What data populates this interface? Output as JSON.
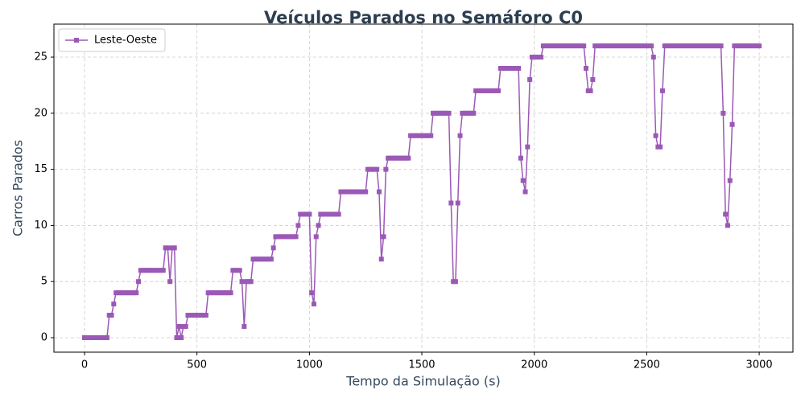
{
  "chart_data": {
    "type": "line",
    "title": "Veículos Parados no Semáforo C0",
    "x_label": "Tempo da Simulação (s)",
    "y_label": "Carros Parados",
    "xlim": [
      -136,
      3150
    ],
    "ylim": [
      -1.29,
      27.94
    ],
    "xticks": [
      0,
      500,
      1000,
      1500,
      2000,
      2500,
      3000
    ],
    "yticks": [
      0,
      5,
      10,
      15,
      20,
      25
    ],
    "grid": true,
    "legend": "upper left",
    "marker": "square",
    "x": [
      0,
      10,
      20,
      30,
      40,
      50,
      60,
      70,
      80,
      90,
      100,
      110,
      120,
      130,
      140,
      150,
      160,
      170,
      180,
      190,
      200,
      210,
      220,
      230,
      240,
      250,
      260,
      270,
      280,
      290,
      300,
      310,
      320,
      330,
      340,
      350,
      360,
      370,
      380,
      390,
      400,
      410,
      420,
      430,
      440,
      450,
      460,
      470,
      480,
      490,
      500,
      510,
      520,
      530,
      540,
      550,
      560,
      570,
      580,
      590,
      600,
      610,
      620,
      630,
      640,
      650,
      660,
      670,
      680,
      690,
      700,
      710,
      720,
      730,
      740,
      750,
      760,
      770,
      780,
      790,
      800,
      810,
      820,
      830,
      840,
      850,
      860,
      870,
      880,
      890,
      900,
      910,
      920,
      930,
      940,
      950,
      960,
      970,
      980,
      990,
      1000,
      1010,
      1020,
      1030,
      1040,
      1050,
      1060,
      1070,
      1080,
      1090,
      1100,
      1110,
      1120,
      1130,
      1140,
      1150,
      1160,
      1170,
      1180,
      1190,
      1200,
      1210,
      1220,
      1230,
      1240,
      1250,
      1260,
      1270,
      1280,
      1290,
      1300,
      1310,
      1320,
      1330,
      1340,
      1350,
      1360,
      1370,
      1380,
      1390,
      1400,
      1410,
      1420,
      1430,
      1440,
      1450,
      1460,
      1470,
      1480,
      1490,
      1500,
      1510,
      1520,
      1530,
      1540,
      1550,
      1560,
      1570,
      1580,
      1590,
      1600,
      1610,
      1620,
      1630,
      1640,
      1650,
      1660,
      1670,
      1680,
      1690,
      1700,
      1710,
      1720,
      1730,
      1740,
      1750,
      1760,
      1770,
      1780,
      1790,
      1800,
      1810,
      1820,
      1830,
      1840,
      1850,
      1860,
      1870,
      1880,
      1890,
      1900,
      1910,
      1920,
      1930,
      1940,
      1950,
      1960,
      1970,
      1980,
      1990,
      2000,
      2010,
      2020,
      2030,
      2040,
      2050,
      2060,
      2070,
      2080,
      2090,
      2100,
      2110,
      2120,
      2130,
      2140,
      2150,
      2160,
      2170,
      2180,
      2190,
      2200,
      2210,
      2220,
      2230,
      2240,
      2250,
      2260,
      2270,
      2280,
      2290,
      2300,
      2310,
      2320,
      2330,
      2340,
      2350,
      2360,
      2370,
      2380,
      2390,
      2400,
      2410,
      2420,
      2430,
      2440,
      2450,
      2460,
      2470,
      2480,
      2490,
      2500,
      2510,
      2520,
      2530,
      2540,
      2550,
      2560,
      2570,
      2580,
      2590,
      2600,
      2610,
      2620,
      2630,
      2640,
      2650,
      2660,
      2670,
      2680,
      2690,
      2700,
      2710,
      2720,
      2730,
      2740,
      2750,
      2760,
      2770,
      2780,
      2790,
      2800,
      2810,
      2820,
      2830,
      2840,
      2850,
      2860,
      2870,
      2880,
      2890,
      2900,
      2910,
      2920,
      2930,
      2940,
      2950,
      2960,
      2970,
      2980,
      2990,
      3000
    ],
    "series": [
      {
        "name": "Leste-Oeste",
        "color": "#9b59b6",
        "values": [
          0,
          0,
          0,
          0,
          0,
          0,
          0,
          0,
          0,
          0,
          0,
          2,
          2,
          3,
          4,
          4,
          4,
          4,
          4,
          4,
          4,
          4,
          4,
          4,
          5,
          6,
          6,
          6,
          6,
          6,
          6,
          6,
          6,
          6,
          6,
          6,
          8,
          8,
          5,
          8,
          8,
          0,
          1,
          0,
          1,
          1,
          2,
          2,
          2,
          2,
          2,
          2,
          2,
          2,
          2,
          4,
          4,
          4,
          4,
          4,
          4,
          4,
          4,
          4,
          4,
          4,
          6,
          6,
          6,
          6,
          5,
          1,
          5,
          5,
          5,
          7,
          7,
          7,
          7,
          7,
          7,
          7,
          7,
          7,
          8,
          9,
          9,
          9,
          9,
          9,
          9,
          9,
          9,
          9,
          9,
          10,
          11,
          11,
          11,
          11,
          11,
          4,
          3,
          9,
          10,
          11,
          11,
          11,
          11,
          11,
          11,
          11,
          11,
          11,
          13,
          13,
          13,
          13,
          13,
          13,
          13,
          13,
          13,
          13,
          13,
          13,
          15,
          15,
          15,
          15,
          15,
          13,
          7,
          9,
          15,
          16,
          16,
          16,
          16,
          16,
          16,
          16,
          16,
          16,
          16,
          18,
          18,
          18,
          18,
          18,
          18,
          18,
          18,
          18,
          18,
          20,
          20,
          20,
          20,
          20,
          20,
          20,
          20,
          12,
          5,
          5,
          12,
          18,
          20,
          20,
          20,
          20,
          20,
          20,
          22,
          22,
          22,
          22,
          22,
          22,
          22,
          22,
          22,
          22,
          22,
          24,
          24,
          24,
          24,
          24,
          24,
          24,
          24,
          24,
          16,
          14,
          13,
          17,
          23,
          25,
          25,
          25,
          25,
          25,
          26,
          26,
          26,
          26,
          26,
          26,
          26,
          26,
          26,
          26,
          26,
          26,
          26,
          26,
          26,
          26,
          26,
          26,
          26,
          24,
          22,
          22,
          23,
          26,
          26,
          26,
          26,
          26,
          26,
          26,
          26,
          26,
          26,
          26,
          26,
          26,
          26,
          26,
          26,
          26,
          26,
          26,
          26,
          26,
          26,
          26,
          26,
          26,
          26,
          25,
          18,
          17,
          17,
          22,
          26,
          26,
          26,
          26,
          26,
          26,
          26,
          26,
          26,
          26,
          26,
          26,
          26,
          26,
          26,
          26,
          26,
          26,
          26,
          26,
          26,
          26,
          26,
          26,
          26,
          26,
          20,
          11,
          10,
          14,
          19,
          26,
          26,
          26,
          26,
          26,
          26,
          26,
          26,
          26,
          26,
          26,
          26
        ]
      }
    ]
  }
}
